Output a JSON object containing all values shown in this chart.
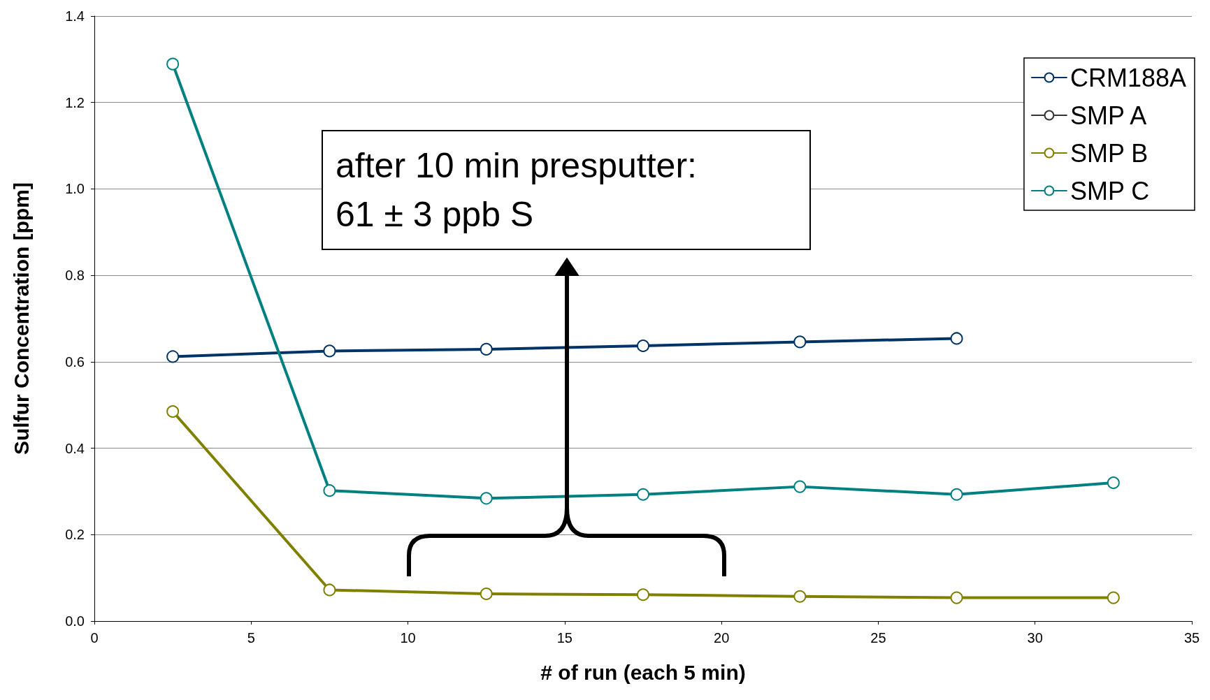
{
  "chart_data": {
    "type": "line",
    "xlabel": "# of run (each 5 min)",
    "ylabel": "Sulfur Concentration [ppm]",
    "x": [
      2.5,
      7.5,
      12.5,
      17.5,
      22.5,
      27.5,
      32.5
    ],
    "series": [
      {
        "name": "CRM188A",
        "color": "#003366",
        "values": [
          0.612,
          0.625,
          0.629,
          0.637,
          0.646,
          0.654,
          null
        ]
      },
      {
        "name": "SMP A",
        "color": "#333333",
        "values": [
          null,
          null,
          null,
          null,
          null,
          null,
          null
        ]
      },
      {
        "name": "SMP B",
        "color": "#808000",
        "values": [
          0.485,
          0.072,
          0.063,
          0.061,
          0.057,
          0.054,
          0.054
        ]
      },
      {
        "name": "SMP C",
        "color": "#008080",
        "values": [
          1.289,
          0.302,
          0.284,
          0.293,
          0.311,
          0.293,
          0.32
        ]
      }
    ],
    "xlim": [
      0,
      35
    ],
    "xticks": [
      0,
      5,
      10,
      15,
      20,
      25,
      30,
      35
    ],
    "ylim": [
      0,
      1.4
    ],
    "yticks": [
      {
        "value": 0,
        "label": "0.0"
      },
      0.2,
      0.4,
      0.6,
      0.8,
      {
        "value": 1,
        "label": "1.0"
      },
      1.2,
      1.4
    ],
    "grid": "y",
    "legend": "top right",
    "marker": "circle",
    "line_style": "solid",
    "annotations": [
      "after 10 min presputter:\n61 ± 3 ppb S"
    ]
  }
}
